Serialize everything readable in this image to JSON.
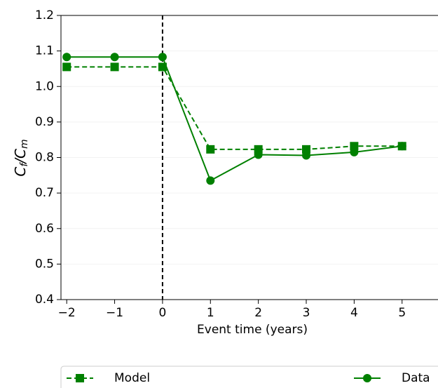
{
  "chart_data": {
    "type": "line",
    "x_label": "Event time (years)",
    "y_label": [
      "C",
      "f",
      "/C",
      "m"
    ],
    "x": [
      -2,
      -1,
      0,
      1,
      2,
      3,
      4,
      5
    ],
    "series": [
      {
        "name": "Model",
        "color": "#008000",
        "dash": true,
        "marker": "square",
        "values": [
          1.055,
          1.055,
          1.055,
          0.823,
          0.823,
          0.823,
          0.832,
          0.832
        ]
      },
      {
        "name": "Data",
        "color": "#008000",
        "dash": false,
        "marker": "circle",
        "values": [
          1.083,
          1.083,
          1.083,
          0.735,
          0.808,
          0.806,
          0.815,
          0.832
        ]
      }
    ],
    "xlim": [
      -2.12,
      5.75
    ],
    "ylim": [
      0.4,
      1.2
    ],
    "xticks": [
      {
        "value": -2,
        "label": "−2"
      },
      {
        "value": -1,
        "label": "−1"
      },
      0,
      1,
      2,
      3,
      4,
      5
    ],
    "yticks": [
      0.4,
      0.5,
      0.6,
      0.7,
      0.8,
      0.9,
      {
        "value": 1.0,
        "label": "1.0"
      },
      1.1,
      1.2
    ],
    "vline": 0,
    "grid": true,
    "legend": "bottom"
  }
}
